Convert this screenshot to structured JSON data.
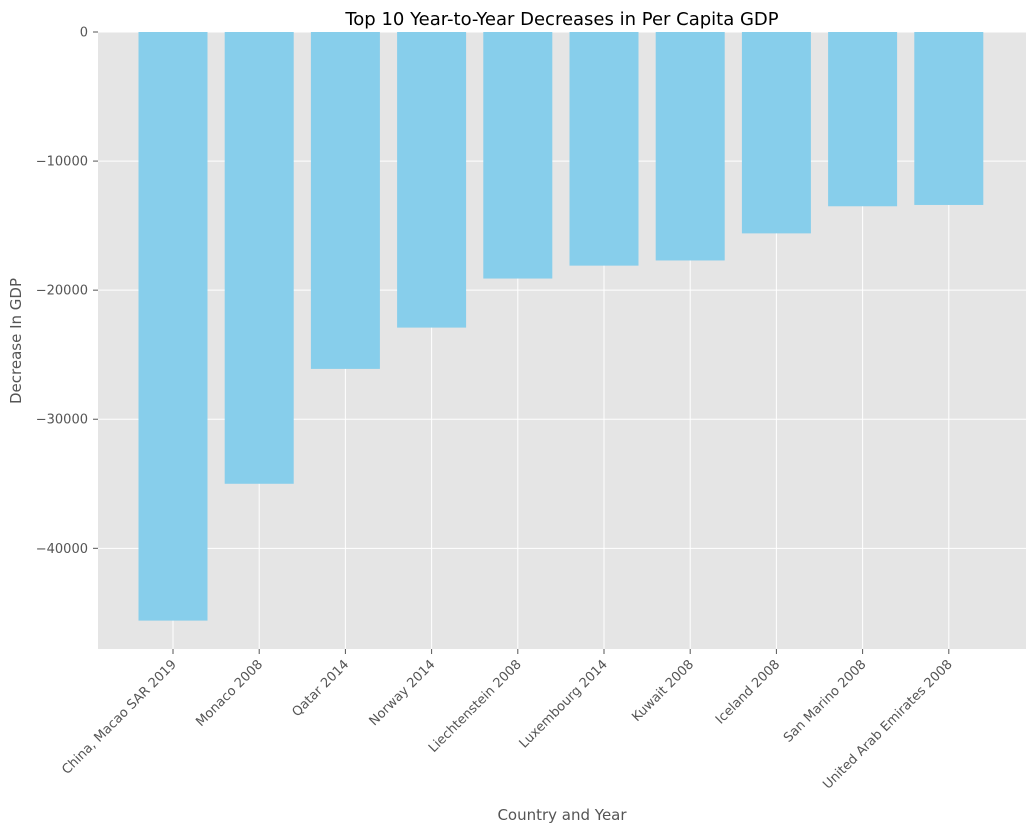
{
  "chart_data": {
    "type": "bar",
    "title": "Top 10 Year-to-Year Decreases in Per Capita GDP",
    "xlabel": "Country and Year",
    "ylabel": "Decrease In GDP",
    "categories": [
      "China, Macao SAR 2019",
      "Monaco 2008",
      "Qatar 2014",
      "Norway 2014",
      "Liechtenstein 2008",
      "Luxembourg 2014",
      "Kuwait 2008",
      "Iceland 2008",
      "San Marino 2008",
      "United Arab Emirates 2008"
    ],
    "values": [
      -45600,
      -35000,
      -26100,
      -22900,
      -19100,
      -18100,
      -17700,
      -15600,
      -13500,
      -13400
    ],
    "ylim": [
      -47800,
      0
    ],
    "yticks": [
      0,
      -10000,
      -20000,
      -30000,
      -40000
    ],
    "ytick_labels": [
      "0",
      "−10000",
      "−20000",
      "−30000",
      "−40000"
    ],
    "grid": true,
    "colors": {
      "bar": "#87ceeb",
      "plot_background": "#e5e5e5",
      "grid": "#ffffff",
      "tick_label": "#555555",
      "title": "#000000"
    }
  }
}
